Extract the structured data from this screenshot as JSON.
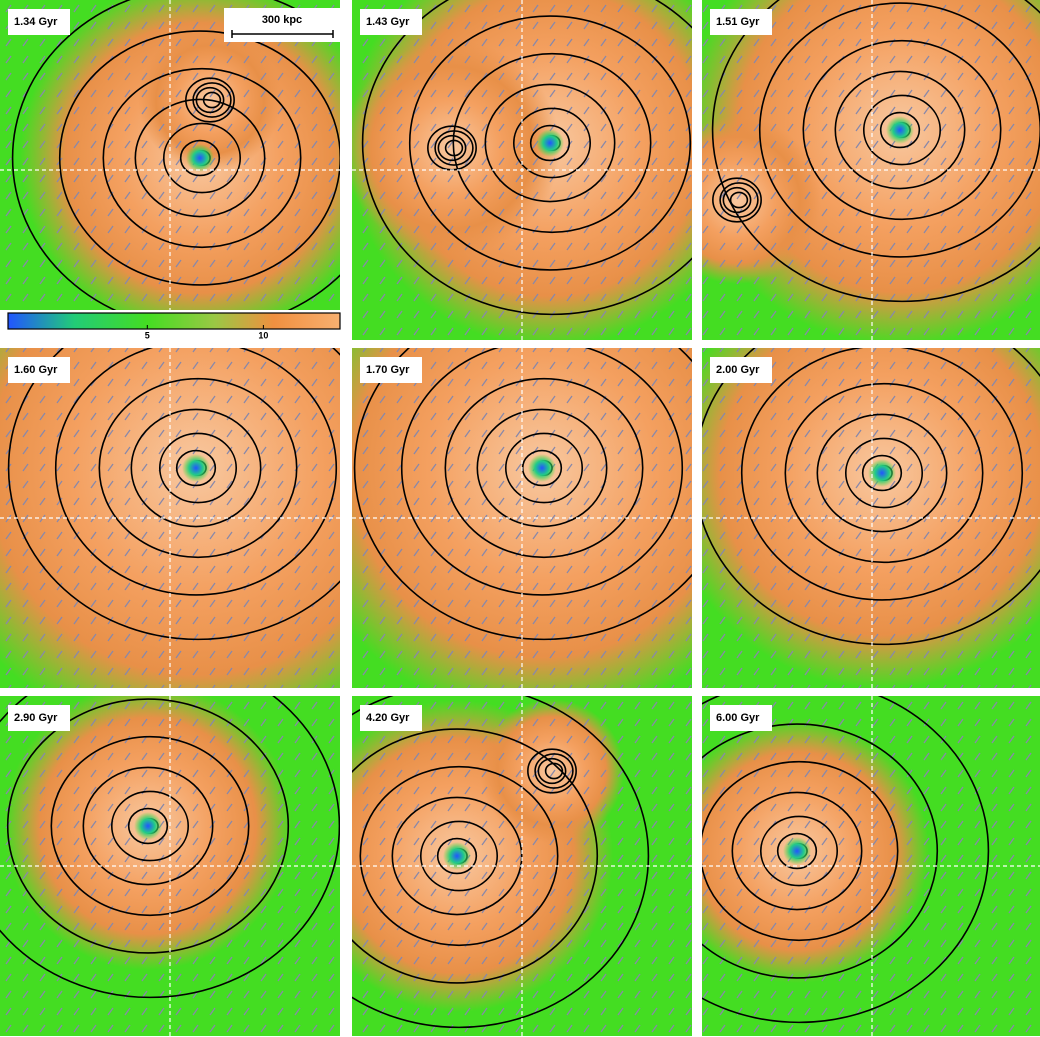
{
  "panels": [
    {
      "label": "1.34 Gyr"
    },
    {
      "label": "1.43 Gyr"
    },
    {
      "label": "1.51 Gyr"
    },
    {
      "label": "1.60 Gyr"
    },
    {
      "label": "1.70 Gyr"
    },
    {
      "label": "2.00 Gyr"
    },
    {
      "label": "2.90 Gyr"
    },
    {
      "label": "4.20 Gyr"
    },
    {
      "label": "6.00 Gyr"
    }
  ],
  "scale_bar": "300 kpc",
  "colorbar": {
    "lim": [
      -1,
      13.3
    ],
    "ticks": [
      5,
      10
    ]
  }
}
